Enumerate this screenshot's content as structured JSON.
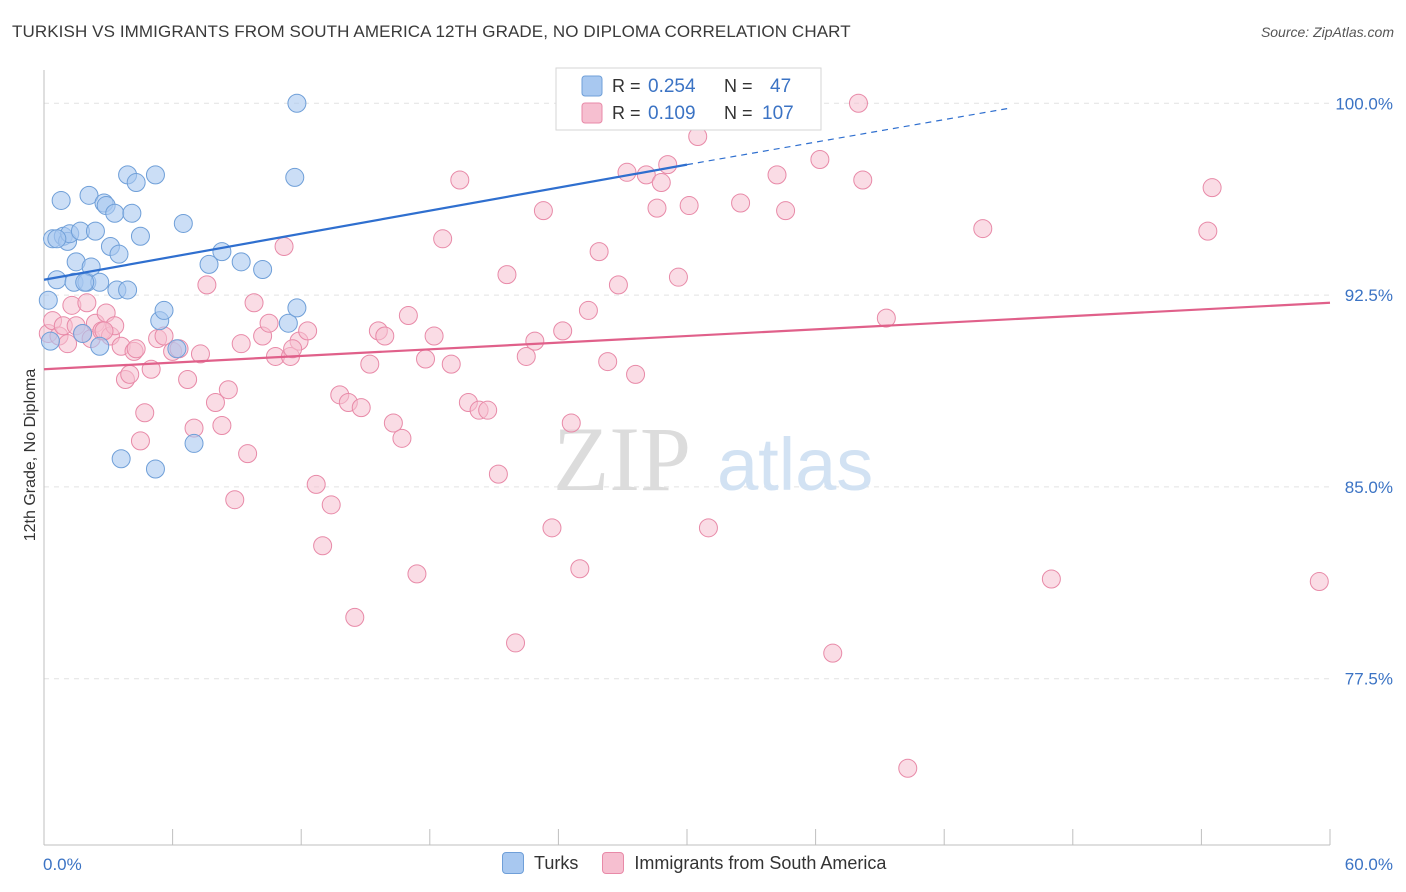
{
  "title": "TURKISH VS IMMIGRANTS FROM SOUTH AMERICA 12TH GRADE, NO DIPLOMA CORRELATION CHART",
  "source": "Source: ZipAtlas.com",
  "watermark": {
    "zip": "ZIP",
    "atlas": "atlas"
  },
  "colors": {
    "turks_fill": "#a8c8f0",
    "turks_stroke": "#6f9fd8",
    "turks_line": "#2f6fcf",
    "sa_fill": "#f6bfd0",
    "sa_stroke": "#e88aa8",
    "sa_line": "#e0608a",
    "value_text": "#3b73c4",
    "grid": "#e2e2e2"
  },
  "legend": {
    "rows": [
      {
        "r_label": "R =",
        "r_value": "0.254",
        "n_label": "N =",
        "n_value": "47"
      },
      {
        "r_label": "R =",
        "r_value": "0.109",
        "n_label": "N =",
        "n_value": "107"
      }
    ],
    "bottom": [
      "Turks",
      "Immigrants from South America"
    ]
  },
  "chart_data": {
    "type": "scatter",
    "xlabel": "",
    "ylabel": "12th Grade, No Diploma",
    "xlim": [
      0,
      60
    ],
    "ylim": [
      71.0,
      101.3
    ],
    "x_tick_labels": [
      "0.0%",
      "60.0%"
    ],
    "y_ticks": [
      77.5,
      85.0,
      92.5,
      100.0
    ],
    "y_tick_labels": [
      "77.5%",
      "85.0%",
      "92.5%",
      "100.0%"
    ],
    "grid": true,
    "series": [
      {
        "name": "Turks",
        "trend": {
          "x": [
            0,
            30,
            45
          ],
          "y": [
            93.1,
            97.6,
            99.8
          ],
          "solid_until": 30
        },
        "points": [
          [
            0.2,
            92.3
          ],
          [
            0.3,
            90.7
          ],
          [
            0.4,
            94.7
          ],
          [
            0.6,
            93.1
          ],
          [
            0.8,
            96.2
          ],
          [
            0.9,
            94.8
          ],
          [
            1.1,
            94.6
          ],
          [
            1.2,
            94.9
          ],
          [
            1.4,
            93.0
          ],
          [
            1.5,
            93.8
          ],
          [
            1.7,
            95.0
          ],
          [
            1.8,
            91.0
          ],
          [
            2.0,
            93.0
          ],
          [
            2.1,
            96.4
          ],
          [
            2.2,
            93.6
          ],
          [
            2.4,
            95.0
          ],
          [
            2.6,
            93.0
          ],
          [
            2.8,
            96.1
          ],
          [
            2.9,
            96.0
          ],
          [
            3.1,
            94.4
          ],
          [
            3.3,
            95.7
          ],
          [
            3.4,
            92.7
          ],
          [
            3.5,
            94.1
          ],
          [
            3.9,
            97.2
          ],
          [
            4.1,
            95.7
          ],
          [
            4.3,
            96.9
          ],
          [
            4.5,
            94.8
          ],
          [
            5.2,
            97.2
          ],
          [
            5.4,
            91.5
          ],
          [
            5.6,
            91.9
          ],
          [
            6.2,
            90.4
          ],
          [
            6.5,
            95.3
          ],
          [
            7.0,
            86.7
          ],
          [
            7.7,
            93.7
          ],
          [
            8.3,
            94.2
          ],
          [
            9.2,
            93.8
          ],
          [
            10.2,
            93.5
          ],
          [
            11.4,
            91.4
          ],
          [
            11.8,
            100.0
          ],
          [
            11.7,
            97.1
          ],
          [
            11.8,
            92.0
          ],
          [
            3.6,
            86.1
          ],
          [
            5.2,
            85.7
          ],
          [
            2.6,
            90.5
          ],
          [
            0.6,
            94.7
          ],
          [
            1.9,
            93.0
          ],
          [
            3.9,
            92.7
          ]
        ]
      },
      {
        "name": "Immigrants from South America",
        "trend": {
          "x": [
            0,
            60
          ],
          "y": [
            89.6,
            92.2
          ]
        },
        "points": [
          [
            0.2,
            91.0
          ],
          [
            0.4,
            91.5
          ],
          [
            0.7,
            90.9
          ],
          [
            0.9,
            91.3
          ],
          [
            1.1,
            90.6
          ],
          [
            1.3,
            92.1
          ],
          [
            1.5,
            91.3
          ],
          [
            1.8,
            91.0
          ],
          [
            2.0,
            92.2
          ],
          [
            2.2,
            90.8
          ],
          [
            2.4,
            91.4
          ],
          [
            2.7,
            91.1
          ],
          [
            2.9,
            91.8
          ],
          [
            3.1,
            90.9
          ],
          [
            3.3,
            91.3
          ],
          [
            3.6,
            90.5
          ],
          [
            3.8,
            89.2
          ],
          [
            4.0,
            89.4
          ],
          [
            4.2,
            90.3
          ],
          [
            4.5,
            86.8
          ],
          [
            4.7,
            87.9
          ],
          [
            5.0,
            89.6
          ],
          [
            5.3,
            90.8
          ],
          [
            5.6,
            90.9
          ],
          [
            6.0,
            90.3
          ],
          [
            6.3,
            90.4
          ],
          [
            6.7,
            89.2
          ],
          [
            7.0,
            87.3
          ],
          [
            7.3,
            90.2
          ],
          [
            7.6,
            92.9
          ],
          [
            8.0,
            88.3
          ],
          [
            8.3,
            87.4
          ],
          [
            8.6,
            88.8
          ],
          [
            8.9,
            84.5
          ],
          [
            9.2,
            90.6
          ],
          [
            9.5,
            86.3
          ],
          [
            9.8,
            92.2
          ],
          [
            10.2,
            90.9
          ],
          [
            10.5,
            91.4
          ],
          [
            10.8,
            90.1
          ],
          [
            11.2,
            94.4
          ],
          [
            11.5,
            90.1
          ],
          [
            11.9,
            90.7
          ],
          [
            12.3,
            91.1
          ],
          [
            12.7,
            85.1
          ],
          [
            13.0,
            82.7
          ],
          [
            13.4,
            84.3
          ],
          [
            13.8,
            88.6
          ],
          [
            14.2,
            88.3
          ],
          [
            14.5,
            79.9
          ],
          [
            14.8,
            88.1
          ],
          [
            15.2,
            89.8
          ],
          [
            15.6,
            91.1
          ],
          [
            15.9,
            90.9
          ],
          [
            16.3,
            87.5
          ],
          [
            16.7,
            86.9
          ],
          [
            17.0,
            91.7
          ],
          [
            17.4,
            81.6
          ],
          [
            17.8,
            90.0
          ],
          [
            18.2,
            90.9
          ],
          [
            18.6,
            94.7
          ],
          [
            19.0,
            89.8
          ],
          [
            19.4,
            97.0
          ],
          [
            19.8,
            88.3
          ],
          [
            20.3,
            88.0
          ],
          [
            20.7,
            88.0
          ],
          [
            21.2,
            85.5
          ],
          [
            21.6,
            93.3
          ],
          [
            22.0,
            78.9
          ],
          [
            22.5,
            90.1
          ],
          [
            22.9,
            90.7
          ],
          [
            23.3,
            95.8
          ],
          [
            23.7,
            83.4
          ],
          [
            24.2,
            91.1
          ],
          [
            24.6,
            87.5
          ],
          [
            25.0,
            81.8
          ],
          [
            25.4,
            91.9
          ],
          [
            25.9,
            94.2
          ],
          [
            26.3,
            89.9
          ],
          [
            26.8,
            92.9
          ],
          [
            27.2,
            97.3
          ],
          [
            27.6,
            89.4
          ],
          [
            28.1,
            97.2
          ],
          [
            28.6,
            95.9
          ],
          [
            29.1,
            97.6
          ],
          [
            29.6,
            93.2
          ],
          [
            30.1,
            96.0
          ],
          [
            30.5,
            98.7
          ],
          [
            31.0,
            83.4
          ],
          [
            32.5,
            96.1
          ],
          [
            34.2,
            97.2
          ],
          [
            34.6,
            95.8
          ],
          [
            36.2,
            97.8
          ],
          [
            36.8,
            78.5
          ],
          [
            38.0,
            100.0
          ],
          [
            38.2,
            97.0
          ],
          [
            39.3,
            91.6
          ],
          [
            40.3,
            74.0
          ],
          [
            43.8,
            95.1
          ],
          [
            47.0,
            81.4
          ],
          [
            54.3,
            95.0
          ],
          [
            54.5,
            96.7
          ],
          [
            59.5,
            81.3
          ],
          [
            2.8,
            91.1
          ],
          [
            4.3,
            90.4
          ],
          [
            11.6,
            90.4
          ],
          [
            28.8,
            96.9
          ]
        ]
      }
    ]
  }
}
